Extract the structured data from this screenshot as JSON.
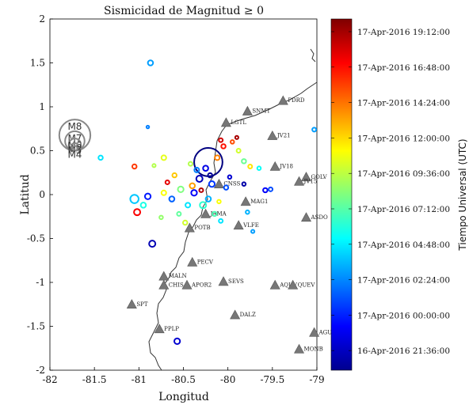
{
  "chart_data": {
    "type": "scatter",
    "title": "Sismicidad de Magnitud ≥ 0",
    "xlabel": "Longitud",
    "ylabel": "Latitud",
    "xlim": [
      -82,
      -79
    ],
    "ylim": [
      -2,
      2
    ],
    "xticks": [
      "-82",
      "-81.5",
      "-81",
      "-80.5",
      "-80",
      "-79.5",
      "-79"
    ],
    "yticks": [
      "2",
      "1.5",
      "1",
      "0.5",
      "0",
      "-0.5",
      "-1",
      "-1.5",
      "-2"
    ],
    "grid": false,
    "colorbar": {
      "label": "Tiempo Universal (UTC)",
      "ticks": [
        "17-Apr-2016 19:12:00",
        "17-Apr-2016 16:48:00",
        "17-Apr-2016 14:24:00",
        "17-Apr-2016 12:00:00",
        "17-Apr-2016 09:36:00",
        "17-Apr-2016 07:12:00",
        "17-Apr-2016 04:48:00",
        "17-Apr-2016 02:24:00",
        "17-Apr-2016 00:00:00",
        "16-Apr-2016 21:36:00"
      ],
      "colormap": "jet",
      "range": [
        "16-Apr-2016 21:36:00",
        "17-Apr-2016 21:36:00"
      ]
    },
    "magnitude_legend": {
      "labels": [
        "M8",
        "M7",
        "M6",
        "M5",
        "M4"
      ],
      "magnitudes": [
        8,
        7,
        6,
        5,
        4
      ]
    },
    "stations": [
      {
        "name": "LGTL",
        "lon": -80.02,
        "lat": 0.82
      },
      {
        "name": "SNMT",
        "lon": -79.78,
        "lat": 0.95
      },
      {
        "name": "PDRD",
        "lon": -79.38,
        "lat": 1.07
      },
      {
        "name": "JV21",
        "lon": -79.5,
        "lat": 0.67
      },
      {
        "name": "JV18",
        "lon": -79.47,
        "lat": 0.32
      },
      {
        "name": "GOLV",
        "lon": -79.12,
        "lat": 0.2
      },
      {
        "name": "JV15",
        "lon": -79.2,
        "lat": 0.15
      },
      {
        "name": "CNSS",
        "lon": -80.1,
        "lat": 0.12
      },
      {
        "name": "MAG1",
        "lon": -79.8,
        "lat": -0.08
      },
      {
        "name": "ASDO",
        "lon": -79.12,
        "lat": -0.26
      },
      {
        "name": "JAMA",
        "lon": -80.25,
        "lat": -0.22
      },
      {
        "name": "VLFE",
        "lon": -79.88,
        "lat": -0.35
      },
      {
        "name": "POTB",
        "lon": -80.43,
        "lat": -0.38
      },
      {
        "name": "PECV",
        "lon": -80.4,
        "lat": -0.77
      },
      {
        "name": "MALN",
        "lon": -80.72,
        "lat": -0.93
      },
      {
        "name": "CHIS",
        "lon": -80.72,
        "lat": -1.03
      },
      {
        "name": "APOR2",
        "lon": -80.46,
        "lat": -1.03
      },
      {
        "name": "SEVS",
        "lon": -80.05,
        "lat": -0.99
      },
      {
        "name": "AQUV",
        "lon": -79.47,
        "lat": -1.03
      },
      {
        "name": "QUEV",
        "lon": -79.27,
        "lat": -1.03
      },
      {
        "name": "SPT",
        "lon": -81.08,
        "lat": -1.25
      },
      {
        "name": "DALZ",
        "lon": -79.92,
        "lat": -1.37
      },
      {
        "name": "PPLP",
        "lon": -80.77,
        "lat": -1.53
      },
      {
        "name": "AGUF",
        "lon": -79.03,
        "lat": -1.57
      },
      {
        "name": "MONB",
        "lon": -79.2,
        "lat": -1.76
      }
    ],
    "events": [
      {
        "lon": -80.22,
        "lat": 0.37,
        "mag": 7.8,
        "t": 0.0
      },
      {
        "lon": -80.87,
        "lat": 1.5,
        "mag": 4.2,
        "t": 0.28
      },
      {
        "lon": -80.9,
        "lat": 0.77,
        "mag": 2.8,
        "t": 0.25
      },
      {
        "lon": -81.43,
        "lat": 0.42,
        "mag": 3.8,
        "t": 0.35
      },
      {
        "lon": -79.03,
        "lat": 0.74,
        "mag": 3.6,
        "t": 0.28
      },
      {
        "lon": -80.83,
        "lat": 0.33,
        "mag": 3.2,
        "t": 0.55
      },
      {
        "lon": -80.72,
        "lat": 0.42,
        "mag": 4.0,
        "t": 0.6
      },
      {
        "lon": -81.05,
        "lat": 0.32,
        "mag": 3.8,
        "t": 0.82
      },
      {
        "lon": -80.85,
        "lat": -0.56,
        "mag": 4.6,
        "t": 0.05
      },
      {
        "lon": -80.57,
        "lat": -1.67,
        "mag": 4.4,
        "t": 0.08
      },
      {
        "lon": -81.05,
        "lat": -0.05,
        "mag": 5.2,
        "t": 0.32
      },
      {
        "lon": -81.02,
        "lat": -0.2,
        "mag": 4.6,
        "t": 0.88
      },
      {
        "lon": -80.95,
        "lat": -0.12,
        "mag": 4.2,
        "t": 0.4
      },
      {
        "lon": -80.9,
        "lat": -0.02,
        "mag": 4.4,
        "t": 0.15
      },
      {
        "lon": -80.72,
        "lat": 0.02,
        "mag": 4.0,
        "t": 0.62
      },
      {
        "lon": -80.63,
        "lat": -0.05,
        "mag": 4.2,
        "t": 0.22
      },
      {
        "lon": -80.53,
        "lat": 0.06,
        "mag": 4.4,
        "t": 0.5
      },
      {
        "lon": -80.45,
        "lat": -0.12,
        "mag": 4.0,
        "t": 0.35
      },
      {
        "lon": -80.38,
        "lat": 0.02,
        "mag": 4.4,
        "t": 0.12
      },
      {
        "lon": -80.32,
        "lat": 0.18,
        "mag": 4.6,
        "t": 0.06
      },
      {
        "lon": -80.25,
        "lat": 0.3,
        "mag": 4.2,
        "t": 0.1
      },
      {
        "lon": -80.18,
        "lat": 0.12,
        "mag": 4.4,
        "t": 0.18
      },
      {
        "lon": -80.12,
        "lat": 0.42,
        "mag": 4.0,
        "t": 0.75
      },
      {
        "lon": -80.05,
        "lat": 0.55,
        "mag": 3.8,
        "t": 0.86
      },
      {
        "lon": -80.08,
        "lat": 0.62,
        "mag": 3.6,
        "t": 0.92
      },
      {
        "lon": -79.95,
        "lat": 0.6,
        "mag": 3.4,
        "t": 0.8
      },
      {
        "lon": -79.88,
        "lat": 0.5,
        "mag": 3.6,
        "t": 0.58
      },
      {
        "lon": -79.82,
        "lat": 0.38,
        "mag": 3.8,
        "t": 0.48
      },
      {
        "lon": -79.75,
        "lat": 0.32,
        "mag": 3.6,
        "t": 0.65
      },
      {
        "lon": -79.65,
        "lat": 0.3,
        "mag": 3.4,
        "t": 0.38
      },
      {
        "lon": -79.58,
        "lat": 0.05,
        "mag": 3.8,
        "t": 0.12
      },
      {
        "lon": -79.52,
        "lat": 0.06,
        "mag": 3.6,
        "t": 0.2
      },
      {
        "lon": -79.78,
        "lat": -0.2,
        "mag": 3.4,
        "t": 0.3
      },
      {
        "lon": -79.72,
        "lat": -0.42,
        "mag": 3.2,
        "t": 0.28
      },
      {
        "lon": -80.28,
        "lat": -0.12,
        "mag": 4.6,
        "t": 0.42
      },
      {
        "lon": -80.22,
        "lat": -0.05,
        "mag": 4.2,
        "t": 0.3
      },
      {
        "lon": -80.35,
        "lat": 0.28,
        "mag": 4.0,
        "t": 0.25
      },
      {
        "lon": -80.42,
        "lat": 0.35,
        "mag": 3.6,
        "t": 0.55
      },
      {
        "lon": -80.6,
        "lat": 0.22,
        "mag": 3.8,
        "t": 0.68
      },
      {
        "lon": -80.68,
        "lat": 0.14,
        "mag": 3.6,
        "t": 0.9
      },
      {
        "lon": -80.15,
        "lat": -0.22,
        "mag": 3.8,
        "t": 0.45
      },
      {
        "lon": -80.08,
        "lat": -0.3,
        "mag": 3.6,
        "t": 0.35
      },
      {
        "lon": -80.02,
        "lat": 0.08,
        "mag": 3.8,
        "t": 0.2
      },
      {
        "lon": -79.98,
        "lat": 0.2,
        "mag": 3.4,
        "t": 0.08
      },
      {
        "lon": -80.48,
        "lat": -0.32,
        "mag": 3.8,
        "t": 0.58
      },
      {
        "lon": -80.55,
        "lat": -0.22,
        "mag": 3.6,
        "t": 0.47
      },
      {
        "lon": -80.75,
        "lat": -0.26,
        "mag": 3.4,
        "t": 0.52
      },
      {
        "lon": -80.4,
        "lat": 0.1,
        "mag": 4.2,
        "t": 0.72
      },
      {
        "lon": -80.3,
        "lat": 0.05,
        "mag": 3.6,
        "t": 0.95
      },
      {
        "lon": -80.2,
        "lat": 0.22,
        "mag": 3.8,
        "t": 0.02
      },
      {
        "lon": -80.1,
        "lat": -0.08,
        "mag": 3.4,
        "t": 0.62
      },
      {
        "lon": -79.9,
        "lat": 0.65,
        "mag": 3.2,
        "t": 0.96
      },
      {
        "lon": -79.82,
        "lat": 0.12,
        "mag": 3.4,
        "t": 0.04
      }
    ]
  }
}
